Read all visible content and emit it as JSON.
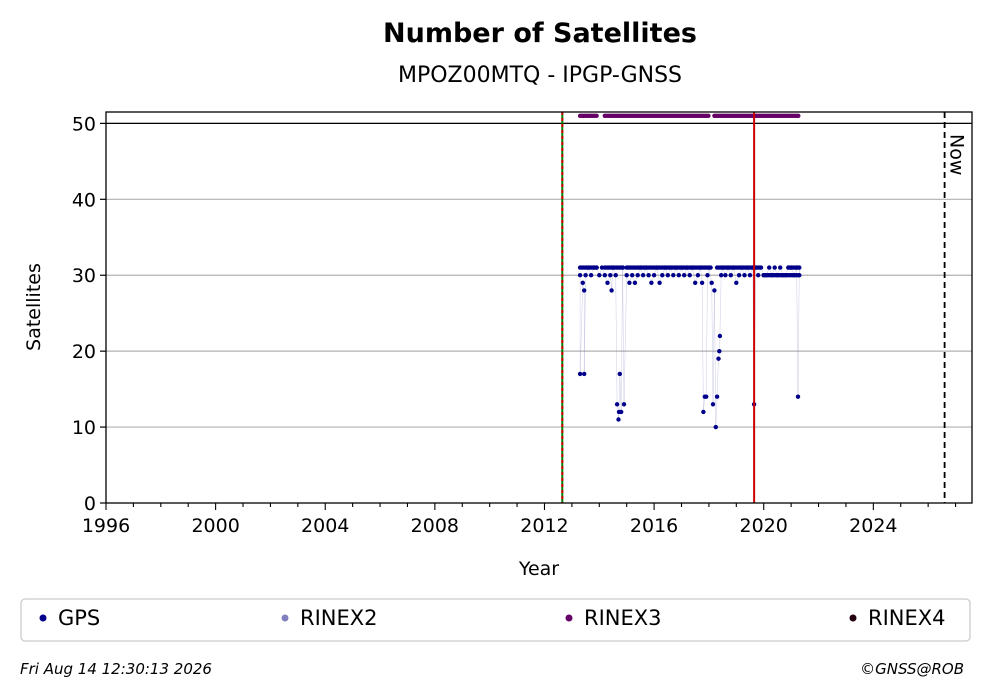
{
  "chart_data": {
    "type": "scatter",
    "title": "Number of Satellites",
    "subtitle": "MPOZ00MTQ - IPGP-GNSS",
    "xlabel": "Year",
    "ylabel": "Satellites",
    "xlim": [
      1996,
      2027.6
    ],
    "ylim": [
      0,
      51.5
    ],
    "x_ticks": [
      1996,
      2000,
      2004,
      2008,
      2012,
      2016,
      2020,
      2024
    ],
    "y_ticks": [
      0,
      10,
      20,
      30,
      40,
      50
    ],
    "grid": "horizontal",
    "hline": 50,
    "vlines": [
      {
        "x": 2012.65,
        "style": "green-red-dashed"
      },
      {
        "x": 2019.65,
        "style": "red-solid"
      },
      {
        "x": 2026.6,
        "style": "black-dashed",
        "label": "Now"
      }
    ],
    "colors": {
      "GPS": "#00008b",
      "RINEX2": "#8080c0",
      "RINEX3": "#660066",
      "RINEX4": "#220011"
    },
    "series": [
      {
        "name": "GPS",
        "points": [
          [
            2013.3,
            30
          ],
          [
            2013.4,
            29
          ],
          [
            2013.45,
            28
          ],
          [
            2013.5,
            30
          ],
          [
            2013.6,
            31
          ],
          [
            2013.3,
            17
          ],
          [
            2013.45,
            17
          ],
          [
            2013.7,
            30
          ],
          [
            2013.8,
            31
          ],
          [
            2013.9,
            31
          ],
          [
            2014.0,
            30
          ],
          [
            2014.1,
            31
          ],
          [
            2014.2,
            30
          ],
          [
            2014.3,
            29
          ],
          [
            2014.4,
            30
          ],
          [
            2014.45,
            28
          ],
          [
            2014.5,
            31
          ],
          [
            2014.6,
            30
          ],
          [
            2014.65,
            13
          ],
          [
            2014.7,
            11
          ],
          [
            2014.72,
            12
          ],
          [
            2014.75,
            17
          ],
          [
            2014.8,
            12
          ],
          [
            2014.9,
            13
          ],
          [
            2014.85,
            31
          ],
          [
            2015.0,
            30
          ],
          [
            2015.1,
            29
          ],
          [
            2015.2,
            30
          ],
          [
            2015.3,
            29
          ],
          [
            2015.4,
            30
          ],
          [
            2015.5,
            31
          ],
          [
            2015.6,
            30
          ],
          [
            2015.7,
            31
          ],
          [
            2015.8,
            30
          ],
          [
            2015.9,
            29
          ],
          [
            2016.0,
            30
          ],
          [
            2016.1,
            31
          ],
          [
            2016.2,
            29
          ],
          [
            2016.3,
            30
          ],
          [
            2016.4,
            31
          ],
          [
            2016.5,
            30
          ],
          [
            2016.6,
            31
          ],
          [
            2016.7,
            30
          ],
          [
            2016.8,
            31
          ],
          [
            2016.9,
            30
          ],
          [
            2017.0,
            31
          ],
          [
            2017.1,
            30
          ],
          [
            2017.2,
            31
          ],
          [
            2017.3,
            30
          ],
          [
            2017.4,
            31
          ],
          [
            2017.5,
            29
          ],
          [
            2017.6,
            30
          ],
          [
            2017.7,
            31
          ],
          [
            2017.75,
            29
          ],
          [
            2017.8,
            12
          ],
          [
            2017.85,
            14
          ],
          [
            2017.9,
            14
          ],
          [
            2017.95,
            30
          ],
          [
            2018.0,
            31
          ],
          [
            2018.1,
            29
          ],
          [
            2018.15,
            13
          ],
          [
            2018.2,
            28
          ],
          [
            2018.25,
            10
          ],
          [
            2018.3,
            14
          ],
          [
            2018.35,
            19
          ],
          [
            2018.38,
            20
          ],
          [
            2018.4,
            22
          ],
          [
            2018.45,
            30
          ],
          [
            2018.5,
            31
          ],
          [
            2018.6,
            30
          ],
          [
            2018.7,
            31
          ],
          [
            2018.8,
            30
          ],
          [
            2018.9,
            31
          ],
          [
            2019.0,
            29
          ],
          [
            2019.1,
            30
          ],
          [
            2019.2,
            31
          ],
          [
            2019.3,
            30
          ],
          [
            2019.4,
            31
          ],
          [
            2019.5,
            30
          ],
          [
            2019.6,
            31
          ],
          [
            2019.65,
            13
          ],
          [
            2019.7,
            31
          ],
          [
            2019.8,
            30
          ],
          [
            2019.9,
            31
          ],
          [
            2020.0,
            30
          ],
          [
            2020.1,
            30
          ],
          [
            2020.2,
            31
          ],
          [
            2020.3,
            30
          ],
          [
            2020.4,
            31
          ],
          [
            2020.5,
            30
          ],
          [
            2020.6,
            31
          ],
          [
            2020.7,
            30
          ],
          [
            2020.8,
            30
          ],
          [
            2020.9,
            31
          ],
          [
            2021.0,
            31
          ],
          [
            2021.1,
            30
          ],
          [
            2021.2,
            31
          ],
          [
            2021.25,
            14
          ],
          [
            2021.3,
            31
          ],
          [
            2021.3,
            30
          ]
        ],
        "ranges": [
          [
            2013.3,
            2013.9,
            31
          ],
          [
            2014.2,
            2014.9,
            31
          ],
          [
            2015.0,
            2018.1,
            31
          ],
          [
            2018.3,
            2019.9,
            31
          ],
          [
            2020.0,
            2021.3,
            30
          ],
          [
            2020.9,
            2021.3,
            31
          ]
        ]
      },
      {
        "name": "RINEX2",
        "points": []
      },
      {
        "name": "RINEX3",
        "ranges": [
          [
            2013.3,
            2013.9,
            51
          ],
          [
            2014.2,
            2018.0,
            51
          ],
          [
            2018.2,
            2021.3,
            51
          ]
        ]
      },
      {
        "name": "RINEX4",
        "points": []
      }
    ]
  },
  "footer": {
    "timestamp": "Fri Aug 14 12:30:13 2026",
    "credit": "©GNSS@ROB"
  }
}
